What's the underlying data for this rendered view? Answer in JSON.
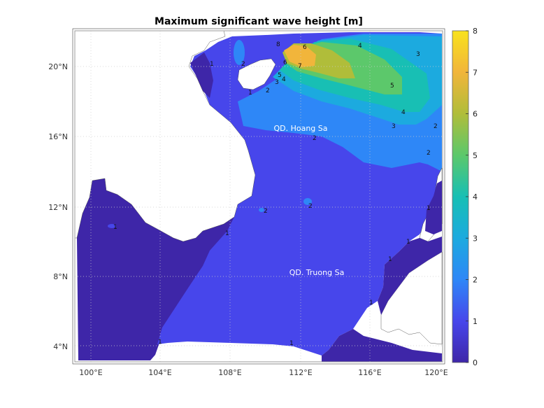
{
  "title": "Maximum significant wave height [m]",
  "map": {
    "lon_range": [
      99.2,
      120.4
    ],
    "lat_range": [
      3.0,
      22.0
    ],
    "x_ticks": [
      "100°E",
      "104°E",
      "108°E",
      "112°E",
      "116°E",
      "120°E"
    ],
    "y_ticks": [
      "4°N",
      "8°N",
      "12°N",
      "16°N",
      "20°N"
    ],
    "grid": true,
    "place_labels": [
      {
        "text": "QD. Hoang Sa"
      },
      {
        "text": "QD. Truong Sa"
      }
    ],
    "contour_labels": [
      "1",
      "2",
      "3",
      "4",
      "5",
      "6",
      "7",
      "8"
    ]
  },
  "colorbar": {
    "min": 0,
    "max": 8,
    "ticks": [
      "0",
      "1",
      "2",
      "3",
      "4",
      "5",
      "6",
      "7",
      "8"
    ],
    "colormap": "parula",
    "colors": [
      "#3e26a8",
      "#4746eb",
      "#2e87f7",
      "#1caadf",
      "#18bfb4",
      "#5cc86b",
      "#b0bd3a",
      "#f1b53b",
      "#f9e21d"
    ]
  },
  "colors": {
    "land": "#ffffff",
    "frame": "#999999"
  }
}
